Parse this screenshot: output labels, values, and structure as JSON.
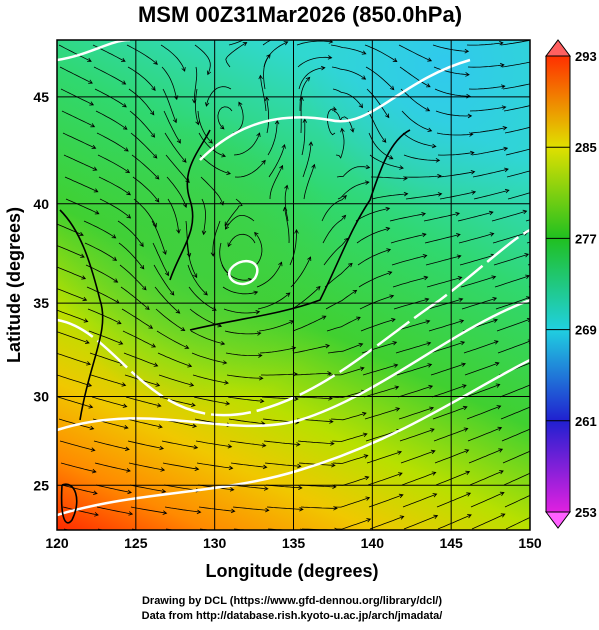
{
  "title": "MSM 00Z31Mar2026 (850.0hPa)",
  "map": {
    "x_label": "Longitude (degrees)",
    "y_label": "Latitude (degrees)",
    "xlim": [
      120,
      150
    ],
    "xticks": [
      120,
      125,
      130,
      135,
      140,
      145,
      150
    ],
    "ylim": [
      22.4,
      47.5
    ],
    "yticks": [
      25,
      30,
      35,
      40,
      45
    ],
    "projection": "mercator"
  },
  "colorbar": {
    "lim": [
      253,
      293
    ],
    "ticks": [
      253,
      261,
      269,
      277,
      285,
      293
    ]
  },
  "footer": [
    "Drawing by DCL (https://www.gfd-dennou.org/library/dcl/)",
    "Data from http://database.rish.kyoto-u.ac.jp/arch/jmadata/"
  ]
}
